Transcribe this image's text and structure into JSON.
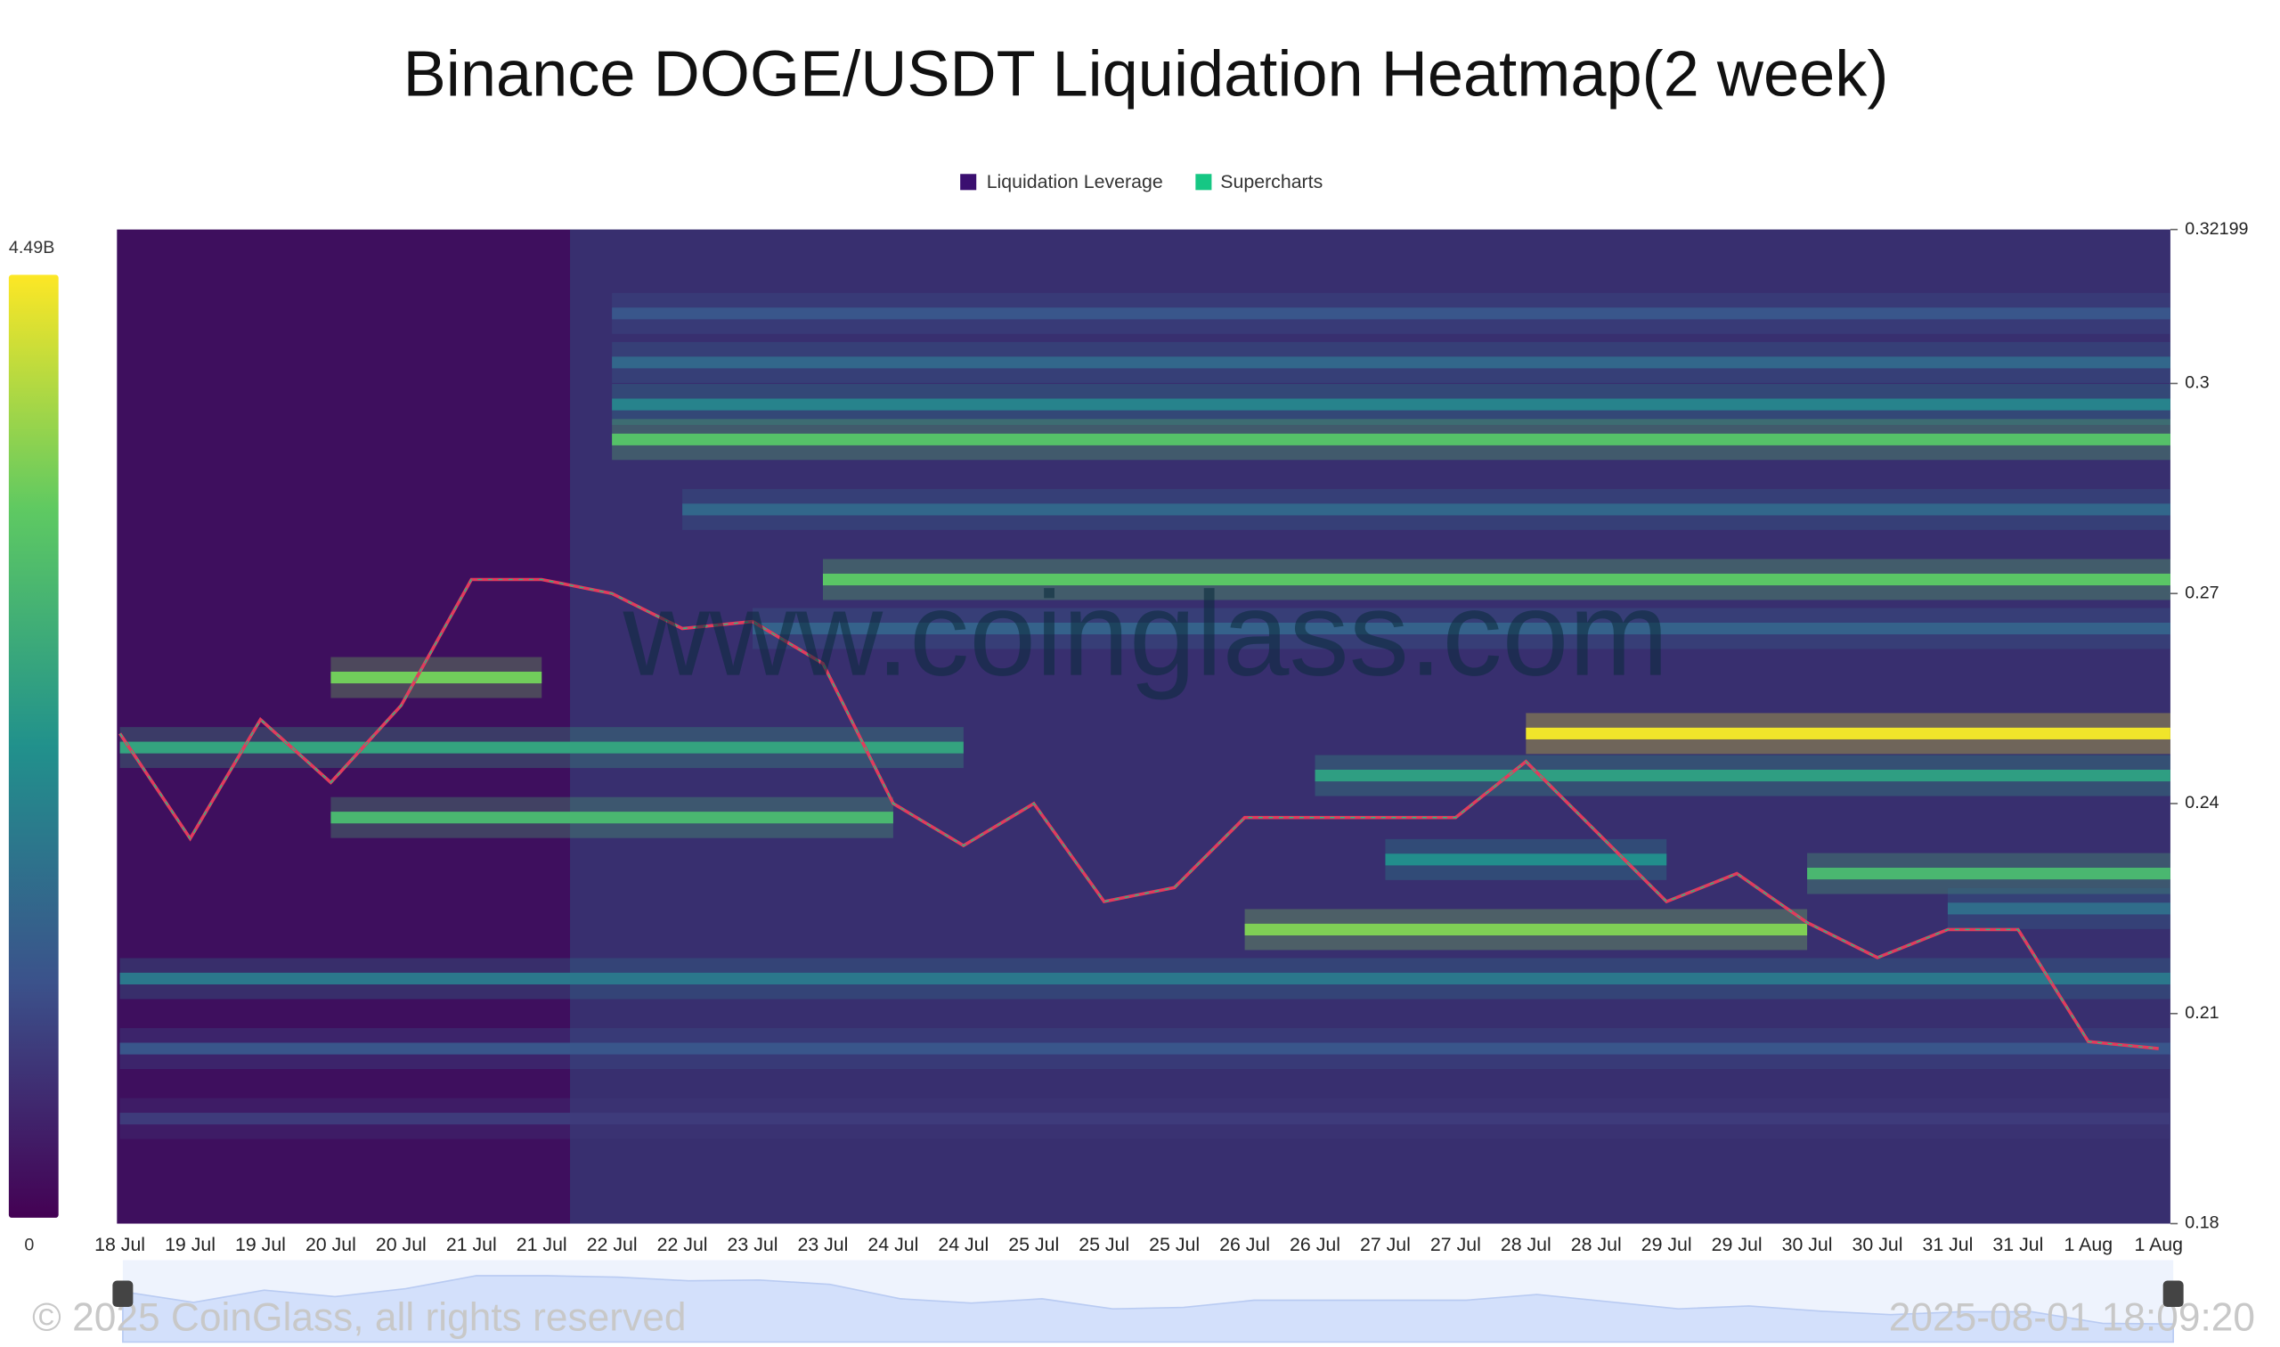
{
  "chart_data": {
    "type": "heatmap",
    "title": "Binance DOGE/USDT Liquidation Heatmap(2 week)",
    "watermark": "www.coinglass.com",
    "copyright": "© 2025 CoinGlass, all rights reserved",
    "timestamp": "2025-08-01 18:09:20",
    "categories": [
      "18 Jul",
      "19 Jul",
      "19 Jul",
      "20 Jul",
      "20 Jul",
      "21 Jul",
      "21 Jul",
      "22 Jul",
      "22 Jul",
      "23 Jul",
      "23 Jul",
      "24 Jul",
      "24 Jul",
      "25 Jul",
      "25 Jul",
      "25 Jul",
      "26 Jul",
      "26 Jul",
      "27 Jul",
      "27 Jul",
      "28 Jul",
      "28 Jul",
      "29 Jul",
      "29 Jul",
      "30 Jul",
      "30 Jul",
      "31 Jul",
      "31 Jul",
      "1 Aug",
      "1 Aug"
    ],
    "series": [
      {
        "name": "Liquidation Leverage",
        "color": "#3b0f70",
        "levels": [
          {
            "price": 0.31,
            "value": 1200000000,
            "start": 7,
            "end": 29
          },
          {
            "price": 0.303,
            "value": 1500000000,
            "start": 7,
            "end": 29
          },
          {
            "price": 0.297,
            "value": 2000000000,
            "start": 7,
            "end": 29
          },
          {
            "price": 0.292,
            "value": 3200000000,
            "start": 7,
            "end": 29
          },
          {
            "price": 0.282,
            "value": 1500000000,
            "start": 8,
            "end": 29
          },
          {
            "price": 0.272,
            "value": 3300000000,
            "start": 10,
            "end": 29
          },
          {
            "price": 0.265,
            "value": 1400000000,
            "start": 9,
            "end": 29
          },
          {
            "price": 0.258,
            "value": 3500000000,
            "start": 3,
            "end": 6
          },
          {
            "price": 0.25,
            "value": 4400000000,
            "start": 20,
            "end": 29
          },
          {
            "price": 0.248,
            "value": 2600000000,
            "start": 0,
            "end": 12
          },
          {
            "price": 0.244,
            "value": 2500000000,
            "start": 17,
            "end": 29
          },
          {
            "price": 0.238,
            "value": 3000000000,
            "start": 3,
            "end": 11
          },
          {
            "price": 0.232,
            "value": 2200000000,
            "start": 18,
            "end": 22
          },
          {
            "price": 0.23,
            "value": 3000000000,
            "start": 24,
            "end": 29
          },
          {
            "price": 0.225,
            "value": 1600000000,
            "start": 26,
            "end": 29
          },
          {
            "price": 0.222,
            "value": 3600000000,
            "start": 16,
            "end": 24
          },
          {
            "price": 0.215,
            "value": 1800000000,
            "start": 0,
            "end": 29
          },
          {
            "price": 0.205,
            "value": 1200000000,
            "start": 0,
            "end": 29
          },
          {
            "price": 0.195,
            "value": 800000000,
            "start": 0,
            "end": 29
          }
        ]
      },
      {
        "name": "Supercharts",
        "color": "#16c784",
        "values": [
          0.25,
          0.235,
          0.252,
          0.243,
          0.254,
          0.272,
          0.272,
          0.27,
          0.265,
          0.266,
          0.26,
          0.24,
          0.234,
          0.24,
          0.226,
          0.228,
          0.238,
          0.238,
          0.238,
          0.238,
          0.246,
          0.236,
          0.226,
          0.23,
          0.223,
          0.218,
          0.222,
          0.222,
          0.206,
          0.205
        ]
      }
    ],
    "ylim": [
      0.18,
      0.32199
    ],
    "yticks": [
      0.18,
      0.21,
      0.24,
      0.27,
      0.3,
      0.32199
    ],
    "colorbar": {
      "min": 0,
      "max": {
        "value": 4490000000,
        "label": "4.49B"
      }
    }
  }
}
